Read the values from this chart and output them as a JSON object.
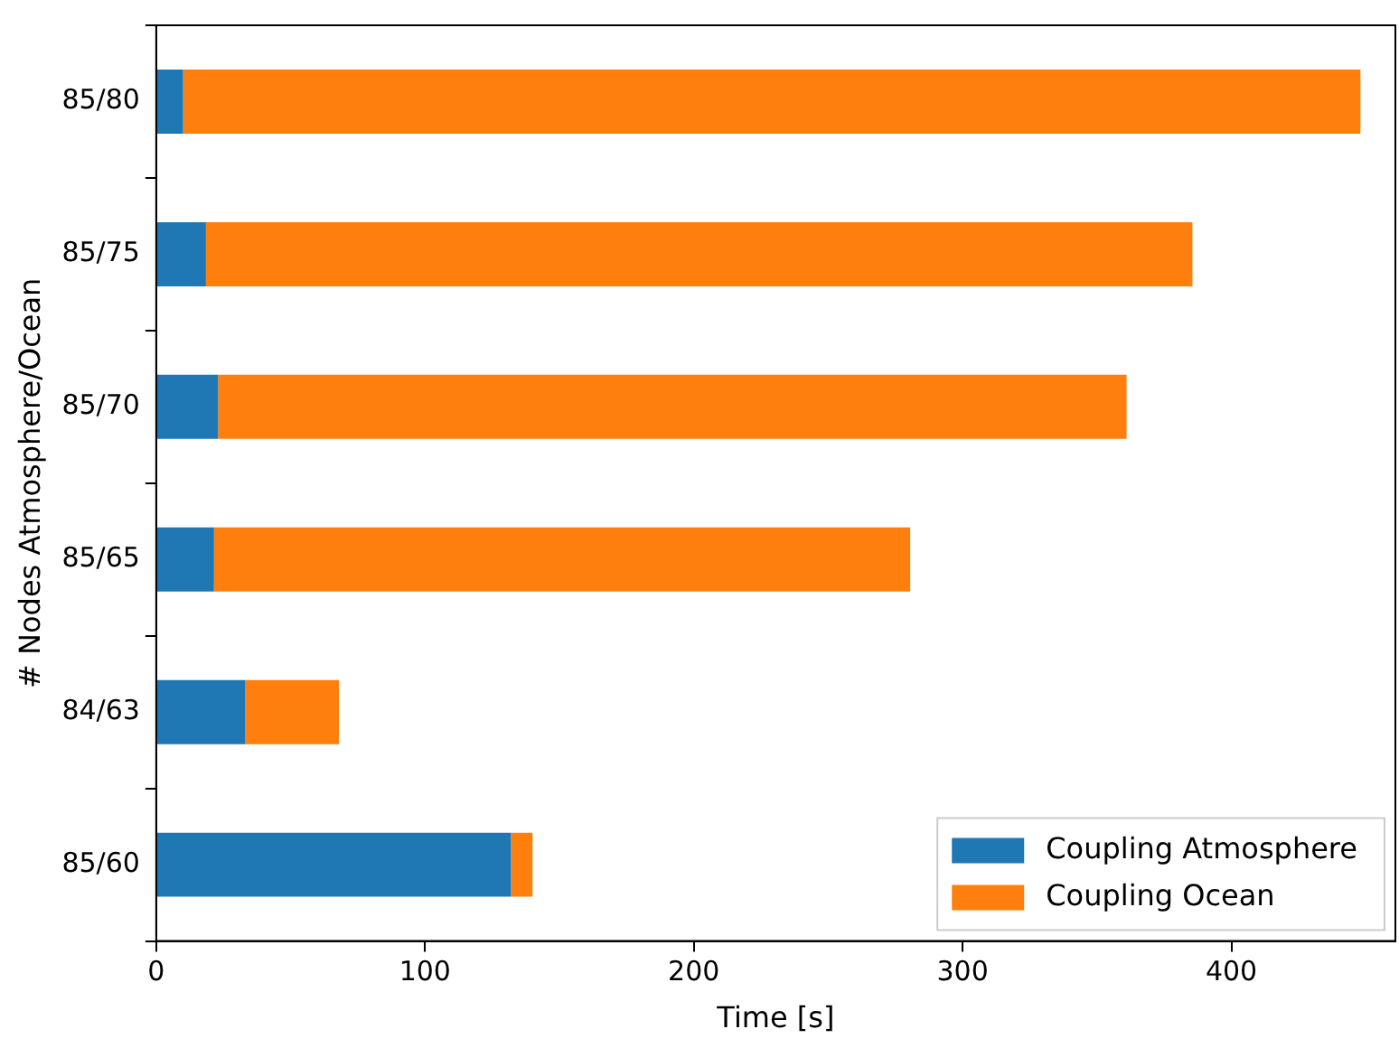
{
  "chart_data": {
    "type": "bar",
    "orientation": "horizontal",
    "stacked": true,
    "xlabel": "Time [s]",
    "ylabel": "# Nodes Atmosphere/Ocean",
    "categories": [
      "85/80",
      "85/75",
      "85/70",
      "85/65",
      "84/63",
      "85/60"
    ],
    "series": [
      {
        "name": "Coupling Atmosphere",
        "color": "#1f77b4",
        "values": [
          10,
          18.5,
          23,
          21.5,
          33,
          132
        ]
      },
      {
        "name": "Coupling Ocean",
        "color": "#ff7f0e",
        "values": [
          438,
          367,
          338,
          259,
          35,
          8
        ]
      }
    ],
    "xlim": [
      0,
      461
    ],
    "xticks": [
      0,
      100,
      200,
      300,
      400
    ],
    "grid": false,
    "legend": "bottom right"
  }
}
